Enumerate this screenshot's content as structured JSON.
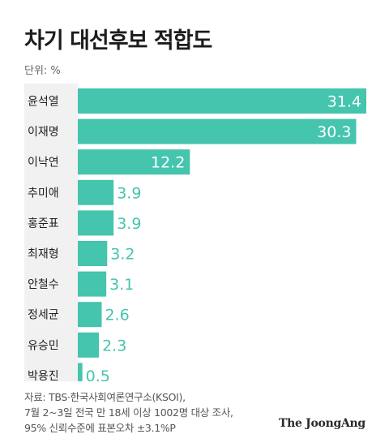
{
  "header": {
    "title": "차기 대선후보 적합도",
    "unit": "단위: %"
  },
  "source": {
    "line1": "자료: TBS·한국사회여론연구소(KSOI),",
    "line2": "7월 2~3일 전국 만 18세 이상 1002명 대상 조사,",
    "line3": "95% 신뢰수준에 표본오차 ±3.1%P"
  },
  "logo": "The JoongAng",
  "colors": {
    "bar": "#45c4ae",
    "label_bg": "#f1f1f1",
    "value_outside": "#45c4ae",
    "value_inside": "#ffffff"
  },
  "chart_data": {
    "type": "bar",
    "orientation": "horizontal",
    "title": "차기 대선후보 적합도",
    "unit": "%",
    "categories": [
      "윤석열",
      "이재명",
      "이낙연",
      "추미애",
      "홍준표",
      "최재형",
      "안철수",
      "정세균",
      "유승민",
      "박용진"
    ],
    "values": [
      31.4,
      30.3,
      12.2,
      3.9,
      3.9,
      3.2,
      3.1,
      2.6,
      2.3,
      0.5
    ],
    "xlim": [
      0,
      31.4
    ],
    "grid": false,
    "legend": "none"
  }
}
